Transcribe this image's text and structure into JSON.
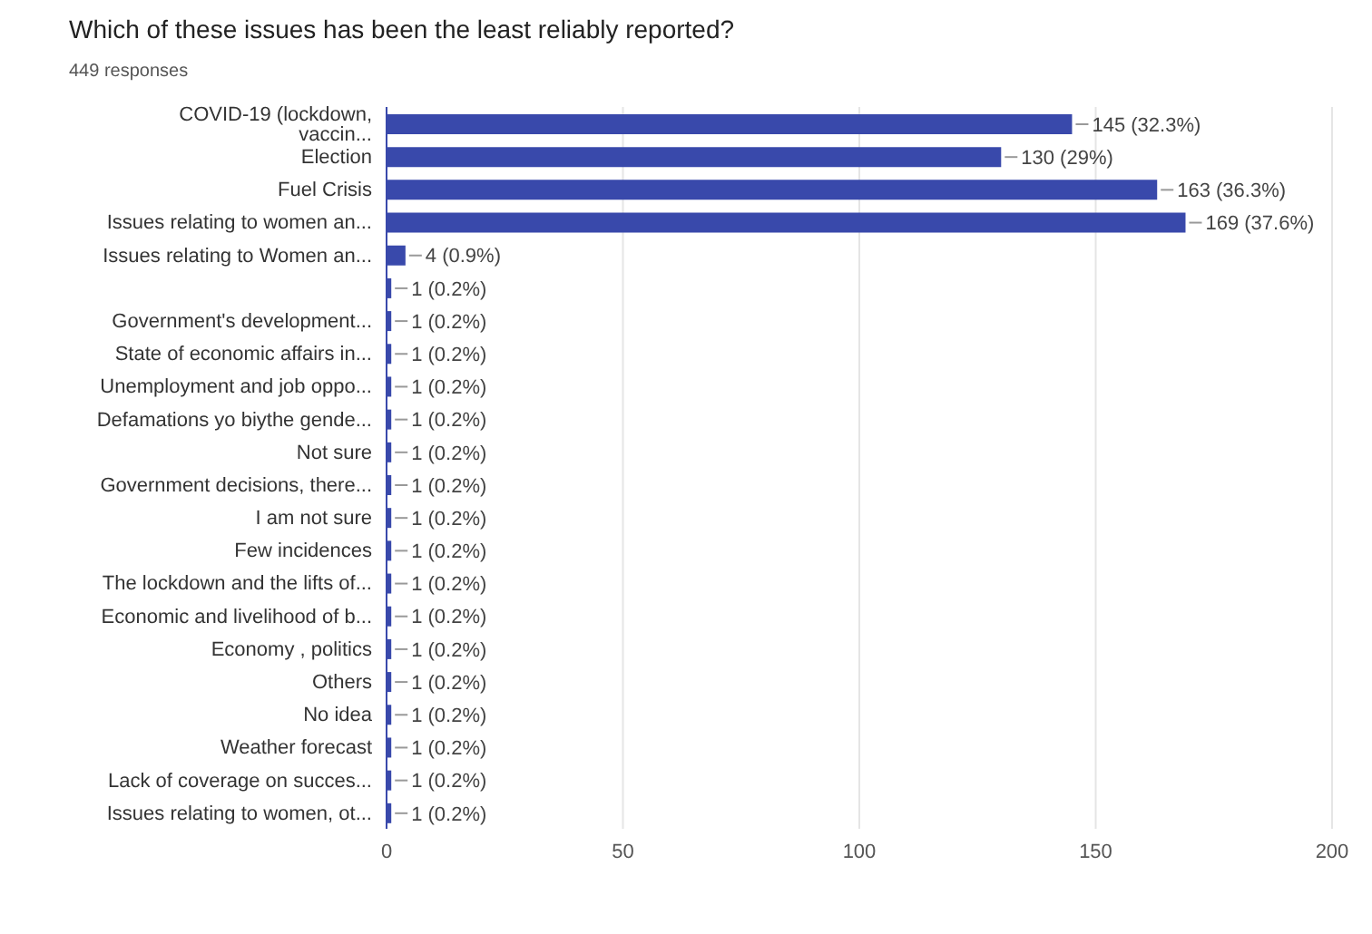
{
  "chart_data": {
    "type": "bar",
    "orientation": "horizontal",
    "title": "Which of these issues has been the least reliably reported?",
    "subtitle": "449 responses",
    "categories": [
      "COVID-19 (lockdown, vaccin...",
      "Election",
      "Fuel Crisis",
      "Issues relating to women an...",
      "Issues relating to Women an...",
      null,
      "Government's development...",
      "State of economic affairs in...",
      "Unemployment and job oppo...",
      "Defamations yo biythe gende...",
      "Not sure",
      "Government decisions, there...",
      "I am not sure",
      "Few incidences",
      "The lockdown and the lifts of...",
      "Economic and livelihood of b...",
      "Economy , politics",
      "Others",
      "No idea",
      "Weather forecast",
      "Lack of coverage on succes...",
      "Issues relating to women, ot..."
    ],
    "values": [
      145,
      130,
      163,
      169,
      4,
      1,
      1,
      1,
      1,
      1,
      1,
      1,
      1,
      1,
      1,
      1,
      1,
      1,
      1,
      1,
      1,
      1
    ],
    "value_labels": [
      "145 (32.3%)",
      "130 (29%)",
      "163 (36.3%)",
      "169 (37.6%)",
      "4 (0.9%)",
      "1 (0.2%)",
      "1 (0.2%)",
      "1 (0.2%)",
      "1 (0.2%)",
      "1 (0.2%)",
      "1 (0.2%)",
      "1 (0.2%)",
      "1 (0.2%)",
      "1 (0.2%)",
      "1 (0.2%)",
      "1 (0.2%)",
      "1 (0.2%)",
      "1 (0.2%)",
      "1 (0.2%)",
      "1 (0.2%)",
      "1 (0.2%)",
      "1 (0.2%)"
    ],
    "color": "#3949ab",
    "xlim": [
      0,
      200
    ],
    "xticks": [
      0,
      50,
      100,
      150,
      200
    ],
    "grid": "x"
  }
}
